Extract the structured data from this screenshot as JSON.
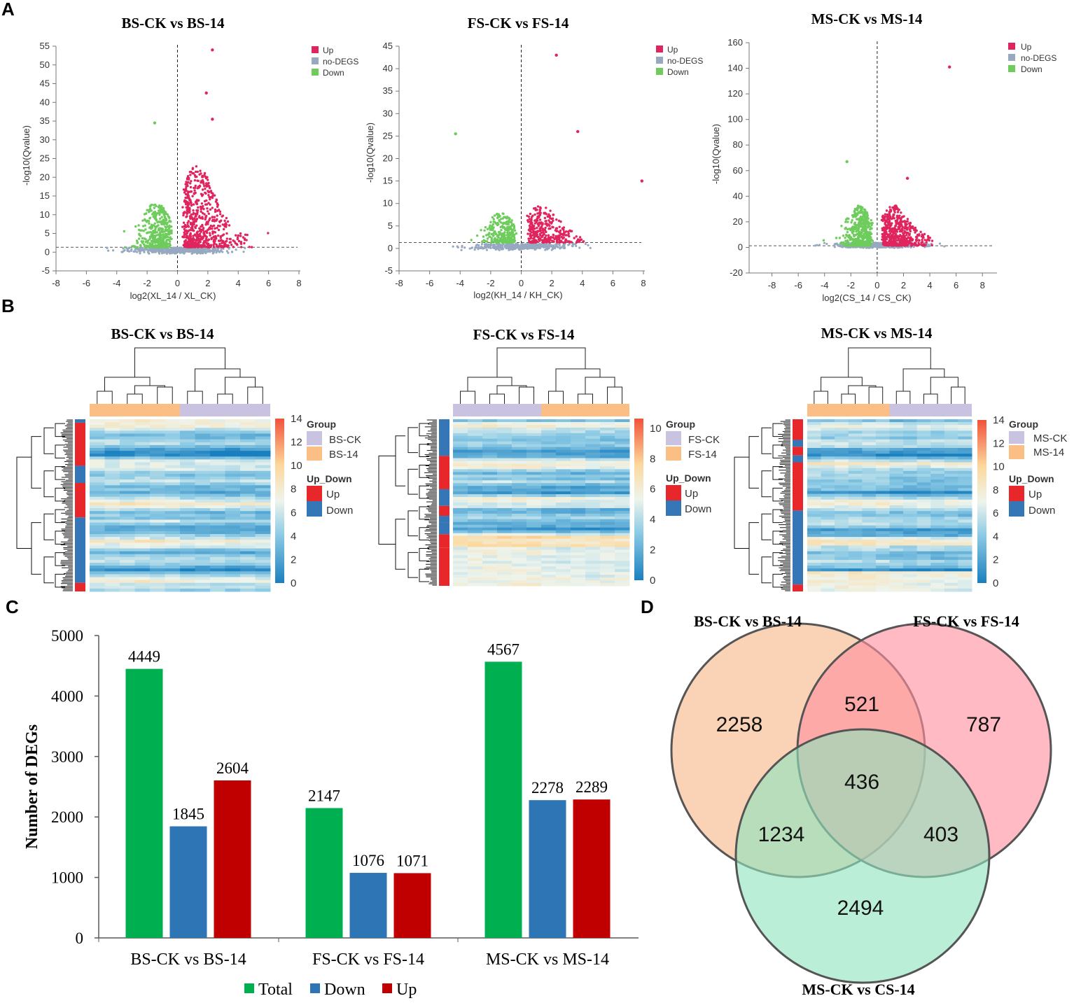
{
  "panels": {
    "A": "A",
    "B": "B",
    "C": "C",
    "D": "D"
  },
  "colors": {
    "up": "#e0245e",
    "nodegs": "#97a9c0",
    "down": "#6dcc5c",
    "total_bar": "#00b050",
    "down_bar": "#2e75b6",
    "up_bar": "#c00000",
    "venn_bs": "#f7b688",
    "venn_fs": "#ff8fa0",
    "venn_ms": "#8fe3bd",
    "heat_up": "#e8272b",
    "heat_down": "#3577b6",
    "group_ck": "#c9c2e0",
    "group_14": "#fbbf86"
  },
  "chart_data": [
    {
      "type": "scatter",
      "name": "volcano-bs",
      "title": "BS-CK vs BS-14",
      "xlabel": "log2(XL_14 / XL_CK)",
      "ylabel": "-log10(Qvalue)",
      "xlim": [
        -8,
        8
      ],
      "ylim": [
        -5,
        55
      ],
      "xticks": [
        -8,
        -6,
        -4,
        -2,
        0,
        2,
        4,
        6,
        8
      ],
      "yticks": [
        -5,
        0,
        5,
        10,
        15,
        20,
        25,
        30,
        35,
        40,
        45,
        50,
        55
      ],
      "threshold": 1.3,
      "legend": [
        "Up",
        "no-DEGS",
        "Down"
      ],
      "notable_points": [
        {
          "x": 2.3,
          "y": 54
        },
        {
          "x": 1.9,
          "y": 42.5
        },
        {
          "x": -1.5,
          "y": 34.5
        },
        {
          "x": 2.3,
          "y": 35.5
        }
      ]
    },
    {
      "type": "scatter",
      "name": "volcano-fs",
      "title": "FS-CK vs FS-14",
      "xlabel": "log2(KH_14 / KH_CK)",
      "ylabel": "-log10(Qvalue)",
      "xlim": [
        -8,
        8
      ],
      "ylim": [
        -5,
        45
      ],
      "xticks": [
        -8,
        -6,
        -4,
        -2,
        0,
        2,
        4,
        6,
        8
      ],
      "yticks": [
        -5,
        0,
        5,
        10,
        15,
        20,
        25,
        30,
        35,
        40,
        45
      ],
      "threshold": 1.3,
      "legend": [
        "Up",
        "no-DEGS",
        "Down"
      ],
      "notable_points": [
        {
          "x": 2.3,
          "y": 43
        },
        {
          "x": -4.3,
          "y": 25.5
        },
        {
          "x": 3.7,
          "y": 26
        },
        {
          "x": 7.9,
          "y": 15
        }
      ]
    },
    {
      "type": "scatter",
      "name": "volcano-ms",
      "title": "MS-CK vs MS-14",
      "xlabel": "log2(CS_14 / CS_CK)",
      "ylabel": "-log10(Qvalue)",
      "xlim": [
        -10,
        9
      ],
      "ylim": [
        -20,
        160
      ],
      "xticks": [
        -8,
        -6,
        -4,
        -2,
        0,
        2,
        4,
        6,
        8
      ],
      "yticks": [
        -20,
        0,
        20,
        40,
        60,
        80,
        100,
        120,
        140,
        160
      ],
      "threshold": 1.3,
      "legend": [
        "Up",
        "no-DEGS",
        "Down"
      ],
      "notable_points": [
        {
          "x": 5.5,
          "y": 141
        },
        {
          "x": -2.3,
          "y": 67
        },
        {
          "x": 2.3,
          "y": 54
        }
      ]
    },
    {
      "type": "heatmap",
      "name": "heatmap-bs",
      "title": "BS-CK vs BS-14",
      "scale": [
        0,
        2,
        4,
        6,
        8,
        10,
        12,
        14
      ],
      "group_legend_title": "Group",
      "groups": [
        "BS-CK",
        "BS-14"
      ],
      "updown_legend_title": "Up_Down",
      "updown": [
        "Up",
        "Down"
      ]
    },
    {
      "type": "heatmap",
      "name": "heatmap-fs",
      "title": "FS-CK vs FS-14",
      "scale": [
        0,
        2,
        4,
        6,
        8,
        10
      ],
      "group_legend_title": "Group",
      "groups": [
        "FS-CK",
        "FS-14"
      ],
      "updown_legend_title": "Up_Down",
      "updown": [
        "Up",
        "Down"
      ]
    },
    {
      "type": "heatmap",
      "name": "heatmap-ms",
      "title": "MS-CK vs MS-14",
      "scale": [
        0,
        2,
        4,
        6,
        8,
        10,
        12,
        14
      ],
      "group_legend_title": "Group",
      "groups": [
        "MS-CK",
        "MS-14"
      ],
      "updown_legend_title": "Up_Down",
      "updown": [
        "Up",
        "Down"
      ]
    },
    {
      "type": "bar",
      "name": "deg-bar-chart",
      "categories": [
        "BS-CK vs BS-14",
        "FS-CK vs FS-14",
        "MS-CK vs MS-14"
      ],
      "series": [
        {
          "name": "Total",
          "values": [
            4449,
            2147,
            4567
          ]
        },
        {
          "name": "Down",
          "values": [
            1845,
            1076,
            2278
          ]
        },
        {
          "name": "Up",
          "values": [
            2604,
            1071,
            2289
          ]
        }
      ],
      "ylabel": "Number of DEGs",
      "ylim": [
        0,
        5000
      ],
      "yticks": [
        0,
        1000,
        2000,
        3000,
        4000,
        5000
      ],
      "legend": "bottom"
    },
    {
      "type": "venn",
      "name": "venn-diagram",
      "sets": [
        "BS-CK vs BS-14",
        "FS-CK vs FS-14",
        "MS-CK vs CS-14"
      ],
      "regions": {
        "bs_only": 2258,
        "fs_only": 787,
        "ms_only": 2494,
        "bs_fs": 521,
        "bs_ms": 1234,
        "fs_ms": 403,
        "all": 436
      }
    }
  ]
}
